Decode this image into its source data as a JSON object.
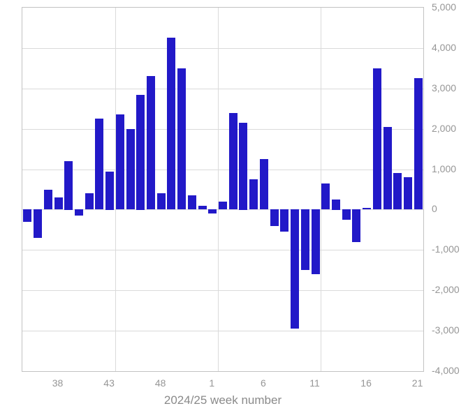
{
  "chart_data": {
    "type": "bar",
    "title": "",
    "xlabel": "2024/25 week number",
    "ylabel": "",
    "categories": [
      "35",
      "36",
      "37",
      "38",
      "39",
      "40",
      "41",
      "42",
      "43",
      "44",
      "45",
      "46",
      "47",
      "48",
      "49",
      "50",
      "51",
      "52",
      "1",
      "2",
      "3",
      "4",
      "5",
      "6",
      "7",
      "8",
      "9",
      "10",
      "11",
      "12",
      "13",
      "14",
      "15",
      "16",
      "17",
      "18",
      "19",
      "20",
      "21"
    ],
    "values": [
      -300,
      -700,
      500,
      300,
      1200,
      -150,
      400,
      2250,
      950,
      2350,
      2000,
      2850,
      3300,
      400,
      4250,
      3500,
      350,
      100,
      -100,
      200,
      2400,
      2150,
      750,
      1250,
      -400,
      -550,
      -2950,
      -1500,
      -1600,
      650,
      250,
      -250,
      -800,
      50,
      3500,
      2050,
      900,
      800,
      3250
    ],
    "ylim": [
      -4000,
      5000
    ],
    "y_tick_step": 1000,
    "y_ticks": [
      "5,000",
      "4,000",
      "3,000",
      "2,000",
      "1,000",
      "0",
      "-1,000",
      "-2,000",
      "-3,000",
      "-4,000"
    ],
    "x_ticks": [
      {
        "label": "38",
        "bar_index": 3
      },
      {
        "label": "43",
        "bar_index": 8
      },
      {
        "label": "48",
        "bar_index": 13
      },
      {
        "label": "1",
        "bar_index": 18
      },
      {
        "label": "6",
        "bar_index": 23
      },
      {
        "label": "11",
        "bar_index": 28
      },
      {
        "label": "16",
        "bar_index": 33
      },
      {
        "label": "21",
        "bar_index": 38
      }
    ],
    "vertical_gridline_boundaries": [
      9,
      19,
      29
    ],
    "grid": true,
    "legend": "none",
    "colors": {
      "bar": "#2219c8",
      "gridline": "#dadada",
      "plot_border": "#c2c2c2",
      "tick_label": "#969696",
      "axis_title": "#8a8a8a",
      "background": "#ffffff"
    }
  }
}
